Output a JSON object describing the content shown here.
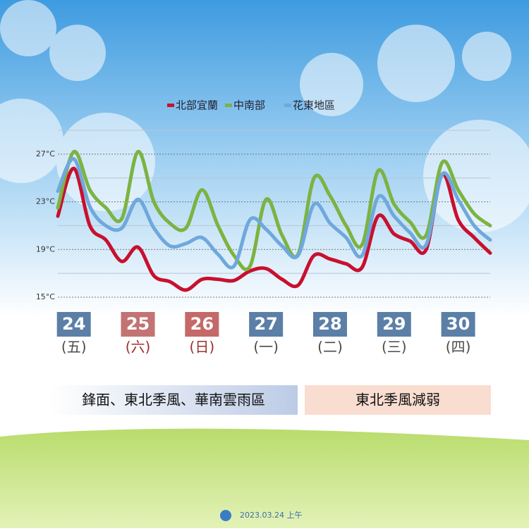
{
  "chart_data": {
    "type": "line",
    "x": [
      23.75,
      24,
      24.25,
      24.5,
      24.75,
      25,
      25.25,
      25.5,
      25.75,
      26,
      26.25,
      26.5,
      26.75,
      27,
      27.25,
      27.5,
      27.75,
      28,
      28.25,
      28.5,
      28.75,
      29,
      29.25,
      29.5,
      29.75,
      30,
      30.25,
      30.5
    ],
    "series": [
      {
        "name": "北部宜蘭",
        "color": "#c8102e",
        "values": [
          21.8,
          25.8,
          21.0,
          19.8,
          18.0,
          19.2,
          16.8,
          16.3,
          15.6,
          16.5,
          16.5,
          16.4,
          17.2,
          17.4,
          16.5,
          16.0,
          18.5,
          18.2,
          17.8,
          17.5,
          21.8,
          20.3,
          19.7,
          19.0,
          25.3,
          21.5,
          20.0,
          18.7
        ]
      },
      {
        "name": "中南部",
        "color": "#7cb342",
        "values": [
          22.5,
          27.2,
          24.0,
          22.5,
          21.6,
          27.2,
          23.0,
          21.2,
          20.8,
          24.0,
          21.0,
          18.5,
          17.6,
          23.2,
          20.2,
          18.6,
          25.0,
          23.5,
          21.0,
          19.4,
          25.6,
          22.8,
          21.3,
          20.2,
          26.3,
          24.0,
          22.0,
          21.0
        ]
      },
      {
        "name": "花東地區",
        "color": "#6fa8dc",
        "values": [
          23.9,
          26.6,
          22.6,
          21.0,
          20.8,
          23.2,
          20.8,
          19.3,
          19.5,
          20.0,
          18.6,
          17.6,
          21.5,
          20.7,
          19.3,
          18.5,
          22.8,
          21.2,
          20.0,
          18.5,
          23.4,
          21.8,
          20.4,
          19.4,
          25.3,
          23.2,
          21.0,
          19.8
        ]
      }
    ],
    "xlim": [
      23.75,
      30.5
    ],
    "xticks": [
      24,
      25,
      26,
      27,
      28,
      29,
      30
    ],
    "xtick_sublabels": [
      "(五)",
      "(六)",
      "(日)",
      "(一)",
      "(二)",
      "(三)",
      "(四)"
    ],
    "xtick_colors": [
      "#5b7fa6",
      "#c27373",
      "#c46868",
      "#5b7fa6",
      "#5b7fa6",
      "#5b7fa6",
      "#5b7fa6"
    ],
    "xtick_sublabel_colors": [
      "#4a4a4a",
      "#9b3030",
      "#9b3030",
      "#4a4a4a",
      "#4a4a4a",
      "#4a4a4a",
      "#4a4a4a"
    ],
    "ylim": [
      15,
      29
    ],
    "yticks": [
      {
        "value": 15,
        "label": "15°C"
      },
      {
        "value": 19,
        "label": "19°C"
      },
      {
        "value": 23,
        "label": "23°C"
      },
      {
        "value": 27,
        "label": "27°C"
      }
    ],
    "minor_yticks": [
      17,
      21,
      25,
      29
    ],
    "grid": true,
    "annotations": [
      "鋒面、東北季風、華南雲雨區",
      "東北季風減弱"
    ],
    "footer": "2023.03.24 上午"
  }
}
